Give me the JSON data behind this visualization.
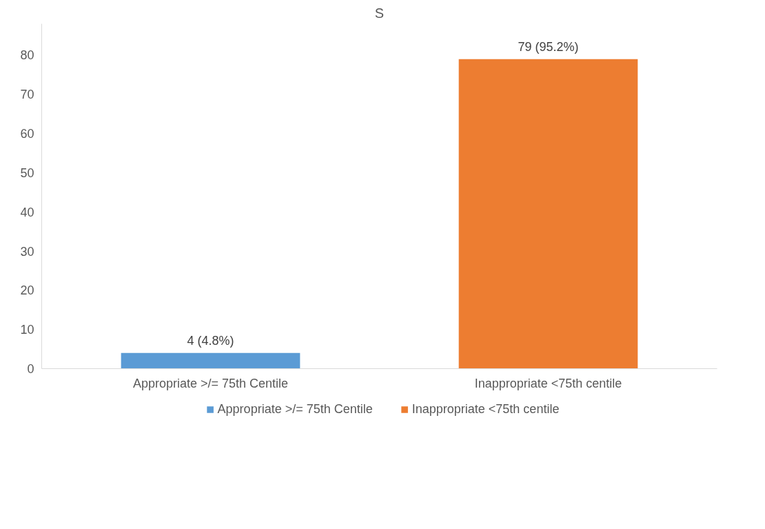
{
  "chart_data": {
    "type": "bar",
    "title": "S",
    "categories": [
      "Appropriate >/= 75th Centile",
      "Inappropriate <75th centile"
    ],
    "series": [
      {
        "name": "Appropriate >/= 75th Centile",
        "color": "#5b9bd5",
        "values": [
          4,
          null
        ],
        "value_labels": [
          "4 (4.8%)",
          null
        ]
      },
      {
        "name": "Inappropriate <75th centile",
        "color": "#ed7d31",
        "values": [
          null,
          79
        ],
        "value_labels": [
          null,
          "79 (95.2%)"
        ]
      }
    ],
    "ylim": [
      0,
      88
    ],
    "yticks": [
      0,
      10,
      20,
      30,
      40,
      50,
      60,
      70,
      80
    ],
    "grid": false,
    "legend": "bottom"
  }
}
